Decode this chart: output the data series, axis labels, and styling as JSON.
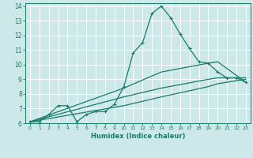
{
  "xlabel": "Humidex (Indice chaleur)",
  "xlim": [
    -0.5,
    23.5
  ],
  "ylim": [
    6,
    14.2
  ],
  "xticks": [
    0,
    1,
    2,
    3,
    4,
    5,
    6,
    7,
    8,
    9,
    10,
    11,
    12,
    13,
    14,
    15,
    16,
    17,
    18,
    19,
    20,
    21,
    22,
    23
  ],
  "yticks": [
    6,
    7,
    8,
    9,
    10,
    11,
    12,
    13,
    14
  ],
  "bg_color": "#cce8e8",
  "grid_color": "#ffffff",
  "line_color": "#1a7a6a",
  "line1_x": [
    0,
    1,
    2,
    3,
    4,
    5,
    6,
    7,
    8,
    9,
    10,
    11,
    12,
    13,
    14,
    15,
    16,
    17,
    18,
    19,
    20,
    21,
    22,
    23
  ],
  "line1_y": [
    6.1,
    6.1,
    6.6,
    7.2,
    7.2,
    6.1,
    6.6,
    6.8,
    6.8,
    7.3,
    8.5,
    10.8,
    11.5,
    13.5,
    14.0,
    13.2,
    12.1,
    11.1,
    10.2,
    10.1,
    9.5,
    9.1,
    9.1,
    8.8
  ],
  "line2_x": [
    0,
    10,
    14,
    19,
    20,
    23
  ],
  "line2_y": [
    6.1,
    8.4,
    9.5,
    10.1,
    10.2,
    8.8
  ],
  "line3_x": [
    0,
    10,
    14,
    19,
    20,
    23
  ],
  "line3_y": [
    6.1,
    7.2,
    7.8,
    8.5,
    8.7,
    9.0
  ],
  "line4_x": [
    0,
    10,
    14,
    19,
    20,
    23
  ],
  "line4_y": [
    6.1,
    7.8,
    8.4,
    9.0,
    9.1,
    9.1
  ]
}
